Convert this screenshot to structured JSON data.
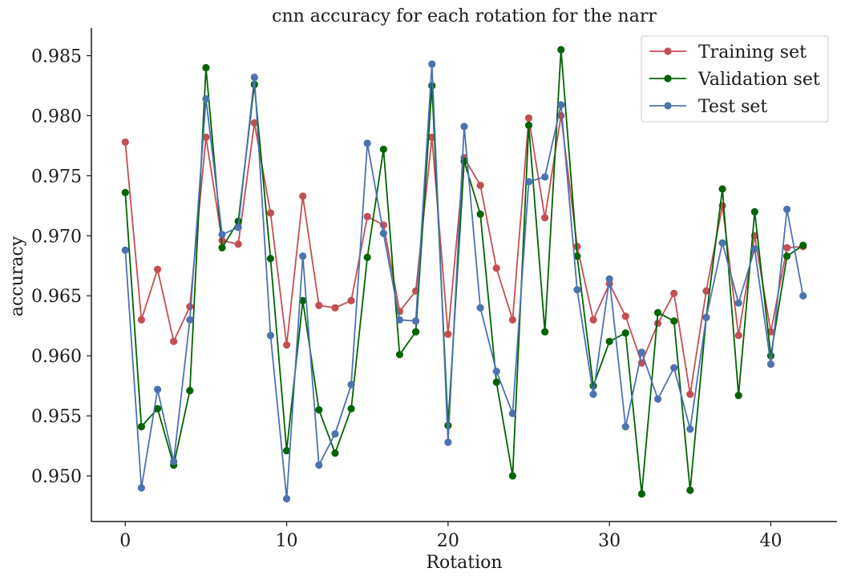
{
  "chart_data": {
    "type": "line",
    "title": "cnn accuracy for each rotation for the narr",
    "xlabel": "Rotation",
    "ylabel": "accuracy",
    "xlim": [
      -2.1,
      44.1
    ],
    "ylim": [
      0.9462,
      0.9873
    ],
    "xticks": [
      0,
      10,
      20,
      30,
      40
    ],
    "xtick_labels": [
      "0",
      "10",
      "20",
      "30",
      "40"
    ],
    "yticks": [
      0.95,
      0.955,
      0.96,
      0.965,
      0.97,
      0.975,
      0.98,
      0.985
    ],
    "ytick_labels": [
      "0.950",
      "0.955",
      "0.960",
      "0.965",
      "0.970",
      "0.975",
      "0.980",
      "0.985"
    ],
    "legend_position": "top-right",
    "grid": false,
    "x": [
      0,
      1,
      2,
      3,
      4,
      5,
      6,
      7,
      8,
      9,
      10,
      11,
      12,
      13,
      14,
      15,
      16,
      17,
      18,
      19,
      20,
      21,
      22,
      23,
      24,
      25,
      26,
      27,
      28,
      29,
      30,
      31,
      32,
      33,
      34,
      35,
      36,
      37,
      38,
      39,
      40,
      41,
      42
    ],
    "series": [
      {
        "name": "Training set",
        "color": "#c44e52",
        "values": [
          0.9778,
          0.963,
          0.9672,
          0.9612,
          0.9641,
          0.9782,
          0.9696,
          0.9693,
          0.9794,
          0.9719,
          0.9609,
          0.9733,
          0.9642,
          0.964,
          0.9646,
          0.9716,
          0.9709,
          0.9637,
          0.9654,
          0.9782,
          0.9618,
          0.9765,
          0.9742,
          0.9673,
          0.963,
          0.9798,
          0.9715,
          0.98,
          0.9691,
          0.963,
          0.966,
          0.9633,
          0.9594,
          0.9627,
          0.9652,
          0.9568,
          0.9654,
          0.9725,
          0.9617,
          0.97,
          0.962,
          0.969,
          0.9691
        ]
      },
      {
        "name": "Validation set",
        "color": "#006400",
        "values": [
          0.9736,
          0.9541,
          0.9556,
          0.9509,
          0.9571,
          0.984,
          0.969,
          0.9712,
          0.9826,
          0.9681,
          0.9521,
          0.9646,
          0.9555,
          0.9519,
          0.9556,
          0.9682,
          0.9772,
          0.9601,
          0.962,
          0.9825,
          0.9542,
          0.9762,
          0.9718,
          0.9578,
          0.95,
          0.9792,
          0.962,
          0.9855,
          0.9683,
          0.9575,
          0.9612,
          0.9619,
          0.9485,
          0.9636,
          0.9629,
          0.9488,
          0.9632,
          0.9739,
          0.9567,
          0.972,
          0.96,
          0.9683,
          0.9692
        ]
      },
      {
        "name": "Test set",
        "color": "#4c72b0",
        "values": [
          0.9688,
          0.949,
          0.9572,
          0.9512,
          0.963,
          0.9814,
          0.9701,
          0.9707,
          0.9832,
          0.9617,
          0.9481,
          0.9683,
          0.9509,
          0.9535,
          0.9576,
          0.9777,
          0.9702,
          0.963,
          0.9629,
          0.9843,
          0.9528,
          0.9791,
          0.964,
          0.9587,
          0.9552,
          0.9745,
          0.9749,
          0.9809,
          0.9655,
          0.9568,
          0.9664,
          0.9541,
          0.9603,
          0.9564,
          0.959,
          0.9539,
          0.9632,
          0.9694,
          0.9644,
          0.9689,
          0.9593,
          0.9722,
          0.965
        ]
      }
    ]
  }
}
